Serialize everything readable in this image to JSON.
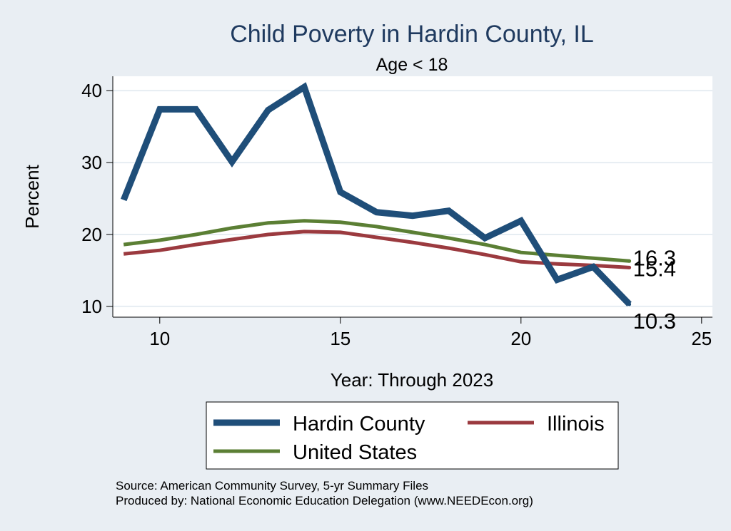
{
  "chart_data": {
    "type": "line",
    "title": "Child Poverty in Hardin County, IL",
    "subtitle": "Age < 18",
    "xlabel": "Year: Through 2023",
    "ylabel": "Percent",
    "xlim": [
      8.7,
      25.3
    ],
    "ylim": [
      8.5,
      42.0
    ],
    "x_ticks": [
      10,
      15,
      20,
      25
    ],
    "y_ticks": [
      10,
      20,
      30,
      40
    ],
    "grid": true,
    "legend_position": "bottom",
    "x": [
      9,
      10,
      11,
      12,
      13,
      14,
      15,
      16,
      17,
      18,
      19,
      20,
      21,
      22,
      23
    ],
    "series": [
      {
        "name": "Hardin County",
        "color": "#1f4e79",
        "width": "thick",
        "values": [
          24.8,
          37.4,
          37.4,
          30.1,
          37.3,
          40.5,
          25.9,
          23.1,
          22.6,
          23.3,
          19.5,
          21.9,
          13.7,
          15.5,
          10.3
        ],
        "end_label": "10.3"
      },
      {
        "name": "Illinois",
        "color": "#9b3a3f",
        "width": "medium",
        "values": [
          17.3,
          17.8,
          18.6,
          19.3,
          20.0,
          20.4,
          20.3,
          19.6,
          18.9,
          18.1,
          17.2,
          16.2,
          15.9,
          15.7,
          15.4
        ],
        "end_label": "15.4"
      },
      {
        "name": "United States",
        "color": "#5b7f34",
        "width": "medium",
        "values": [
          18.6,
          19.2,
          20.0,
          20.9,
          21.6,
          21.9,
          21.7,
          21.1,
          20.3,
          19.5,
          18.6,
          17.5,
          17.1,
          16.7,
          16.3
        ],
        "end_label": "16.3"
      }
    ],
    "legend": {
      "entries": [
        "Hardin County",
        "Illinois",
        "United States"
      ]
    }
  },
  "source": {
    "line1": "Source: American Community Survey, 5-yr Summary Files",
    "line2": "Produced by: National Economic Education Delegation (www.NEEDEcon.org)"
  }
}
